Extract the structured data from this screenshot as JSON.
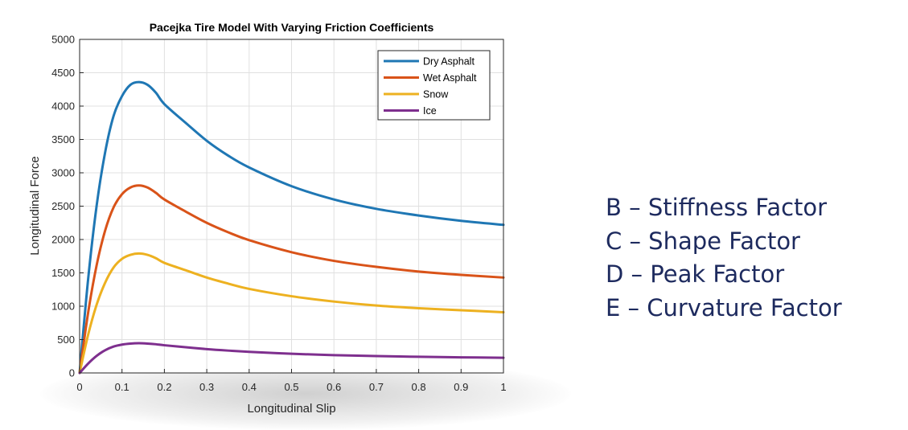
{
  "chart_data": {
    "type": "line",
    "title": "Pacejka Tire Model With Varying Friction Coefficients",
    "xlabel": "Longitudinal Slip",
    "ylabel": "Longitudinal Force",
    "xlim": [
      0,
      1
    ],
    "ylim": [
      0,
      5000
    ],
    "xticks": [
      "0",
      "0.1",
      "0.2",
      "0.3",
      "0.4",
      "0.5",
      "0.6",
      "0.7",
      "0.8",
      "0.9",
      "1"
    ],
    "yticks": [
      "0",
      "500",
      "1000",
      "1500",
      "2000",
      "2500",
      "3000",
      "3500",
      "4000",
      "4500",
      "5000"
    ],
    "grid": true,
    "legend_position": "top-right",
    "x": [
      0,
      0.02,
      0.04,
      0.06,
      0.08,
      0.1,
      0.12,
      0.14,
      0.16,
      0.18,
      0.2,
      0.25,
      0.3,
      0.35,
      0.4,
      0.5,
      0.6,
      0.7,
      0.8,
      0.9,
      1.0
    ],
    "series": [
      {
        "name": "Dry Asphalt",
        "color": "#1f77b4",
        "values": [
          0,
          1400,
          2500,
          3300,
          3850,
          4150,
          4320,
          4360,
          4320,
          4200,
          4030,
          3750,
          3480,
          3260,
          3080,
          2800,
          2600,
          2460,
          2360,
          2280,
          2220
        ]
      },
      {
        "name": "Wet Asphalt",
        "color": "#d95319",
        "values": [
          0,
          900,
          1610,
          2130,
          2480,
          2680,
          2780,
          2810,
          2780,
          2700,
          2600,
          2420,
          2250,
          2110,
          1990,
          1810,
          1680,
          1590,
          1520,
          1470,
          1430
        ]
      },
      {
        "name": "Snow",
        "color": "#edb120",
        "values": [
          0,
          570,
          1020,
          1350,
          1580,
          1710,
          1770,
          1790,
          1770,
          1720,
          1650,
          1540,
          1430,
          1340,
          1260,
          1150,
          1070,
          1010,
          970,
          940,
          910
        ]
      },
      {
        "name": "Ice",
        "color": "#7e2f8e",
        "values": [
          0,
          140,
          255,
          340,
          395,
          425,
          440,
          445,
          440,
          430,
          415,
          385,
          357,
          335,
          316,
          287,
          267,
          253,
          242,
          234,
          228
        ]
      }
    ]
  },
  "factors": [
    "B – Stiffness Factor",
    "C – Shape Factor",
    "D – Peak Factor",
    "E – Curvature Factor"
  ]
}
